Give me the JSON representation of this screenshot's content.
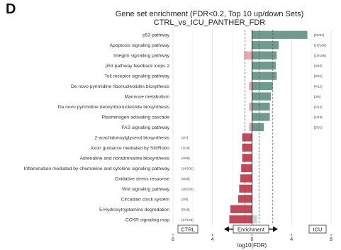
{
  "panel_letter": "D",
  "chart_data": {
    "type": "bar",
    "orientation": "horizontal",
    "title": "Gene set enrichment (FDR<0.2, Top 10 up/down Sets)",
    "subtitle": "CTRL_vs_ICU_PANTHER_FDR",
    "xlabel": "log10(FDR)",
    "ylabel": "",
    "xlim": [
      -8,
      8
    ],
    "x_ticks": [
      {
        "value": -8,
        "label": "8"
      },
      {
        "value": -4,
        "label": "4"
      },
      {
        "value": 0,
        "label": "0"
      },
      {
        "value": 4,
        "label": "4"
      },
      {
        "value": 8,
        "label": "8"
      }
    ],
    "threshold_lines": [
      -0.7,
      0.7,
      2.1
    ],
    "grid": true,
    "colors": {
      "up": "#6f9a8d",
      "down": "#bf4b5a",
      "faint_up": "#c5d6cf",
      "faint_down": "#e3aab1"
    },
    "left_box_label": "CTRL",
    "right_box_label": "ICU",
    "center_label": "Enrichment",
    "categories": [
      "p53 pathway",
      "Apoptosis signaling pathway",
      "Integrin signalling pathway",
      "p53 pathway feedback loops 2",
      "Toll receptor signaling pathway",
      "De novo pyrimidine ribonucleotides biosythesis",
      "Mannose metabolism",
      "De novo pyrimidine deoxyribonucleotide biosynthesis",
      "Plasminogen activating cascade",
      "FAS signaling pathway",
      "2-arachidonoylglycerol biosynthesis",
      "Axon guidance mediated by Slit/Robo",
      "Adrenaline and noradrenaline biosynthesis",
      "Inflammation mediated by chemokine and cytokine signaling pathway",
      "Oxidative stress response",
      "Wnt signaling pathway",
      "Circadian clock system",
      "5-Hydroxytryptamine degredation",
      "CCKR signaling map"
    ],
    "series": [
      {
        "name": "up",
        "values": [
          5.6,
          2.7,
          2.5,
          2.4,
          2.5,
          2.1,
          1.9,
          1.8,
          1.8,
          1.2,
          0,
          0,
          0,
          0,
          0,
          0,
          0,
          0,
          0.5
        ]
      },
      {
        "name": "down",
        "values": [
          0,
          0,
          -0.8,
          0,
          0,
          -0.3,
          0,
          -0.3,
          0,
          -0.3,
          -1.0,
          -1.0,
          -1.0,
          -1.1,
          -1.2,
          -1.3,
          -1.4,
          -2.2,
          -2.3
        ]
      }
    ],
    "up_counts": [
      "[20/81]",
      "[16/106]",
      "[19/166]",
      "[9/48]",
      "[9/51]",
      "[4/12]",
      "[3/6]",
      "[4/14]",
      "[4/15]",
      "[5/31]",
      "",
      "",
      "",
      "",
      "",
      "",
      "",
      "",
      ""
    ],
    "down_counts": [
      "",
      "",
      "",
      "",
      "",
      "",
      "",
      "",
      "",
      "",
      "[2/7]",
      "[3/18]",
      "[4/09]",
      "[14/202]",
      "[6/45]",
      "[20/292]",
      "[3/9]",
      "[5/18]",
      "[17/176]"
    ]
  }
}
